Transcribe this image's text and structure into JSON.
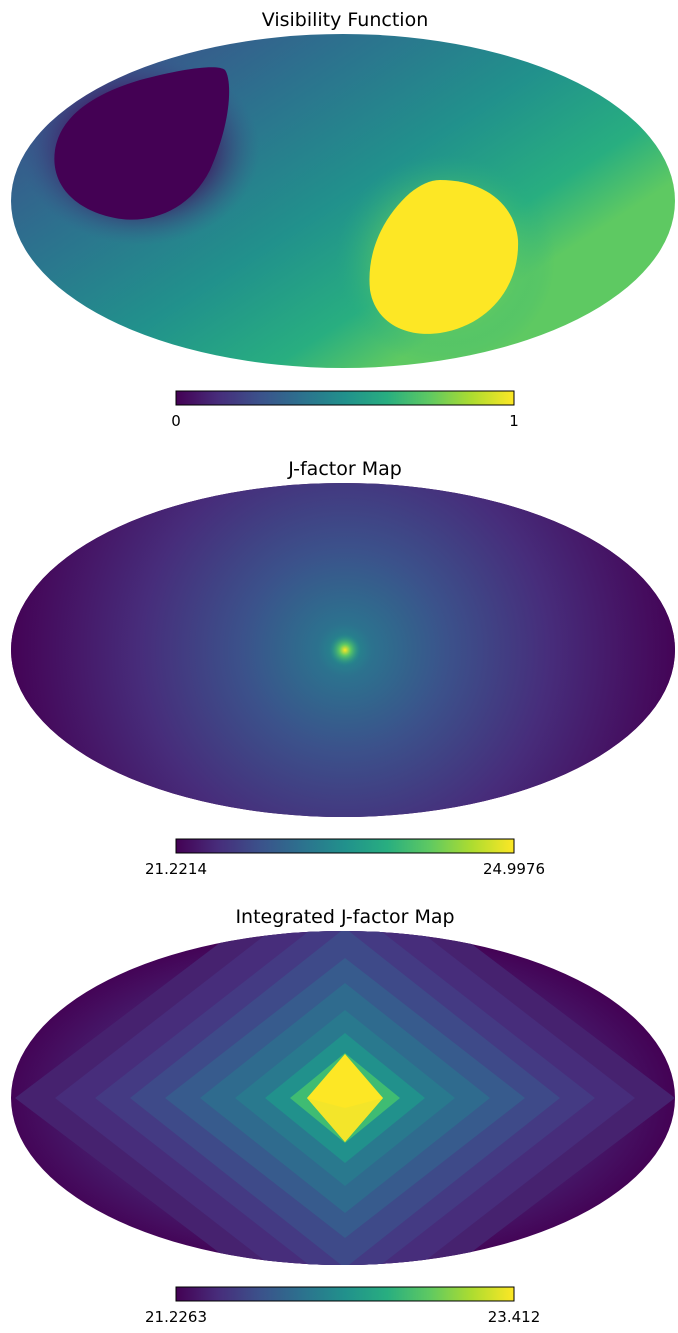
{
  "chart_data": [
    {
      "type": "heatmap",
      "projection": "mollweide",
      "title": "Visibility Function",
      "colormap": "viridis",
      "colorbar": {
        "min_label": "0",
        "max_label": "1",
        "min": 0,
        "max": 1
      }
    },
    {
      "type": "heatmap",
      "projection": "mollweide",
      "title": "J-factor Map",
      "colormap": "viridis",
      "colorbar": {
        "min_label": "21.2214",
        "max_label": "24.9976",
        "min": 21.2214,
        "max": 24.9976
      }
    },
    {
      "type": "heatmap",
      "projection": "mollweide",
      "title": "Integrated J-factor Map",
      "colormap": "viridis",
      "colorbar": {
        "min_label": "21.2263",
        "max_label": "23.412",
        "min": 21.2263,
        "max": 23.412
      }
    }
  ],
  "colors": {
    "viridis_0": "#440154",
    "viridis_25": "#3b528b",
    "viridis_50": "#21918c",
    "viridis_75": "#5ec962",
    "viridis_100": "#fde725"
  }
}
